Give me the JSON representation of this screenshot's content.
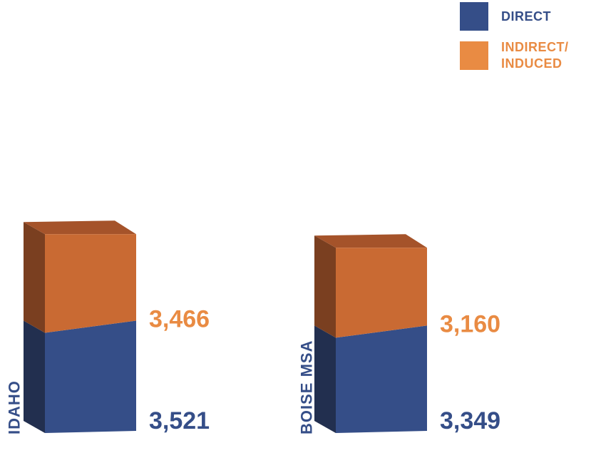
{
  "legend": {
    "direct_label": "DIRECT",
    "indirect_label": "INDIRECT/\nINDUCED"
  },
  "colors": {
    "direct_front": "#354e88",
    "direct_side": "#222f4f",
    "indirect_front": "#c96a33",
    "indirect_side": "#7a3f20",
    "indirect_top": "#a5532a",
    "direct_label": "#354e88",
    "indirect_label": "#e98b43"
  },
  "chart_data": {
    "type": "bar",
    "stacked": true,
    "categories": [
      "IDAHO",
      "BOISE MSA"
    ],
    "series": [
      {
        "name": "DIRECT",
        "values": [
          3521,
          3349
        ],
        "value_labels": [
          "3,521",
          "3,349"
        ]
      },
      {
        "name": "INDIRECT/ INDUCED",
        "values": [
          3466,
          3160
        ],
        "value_labels": [
          "3,466",
          "3,160"
        ]
      }
    ],
    "title": "",
    "xlabel": "",
    "ylabel": "",
    "grid": false,
    "legend_position": "top-right"
  }
}
